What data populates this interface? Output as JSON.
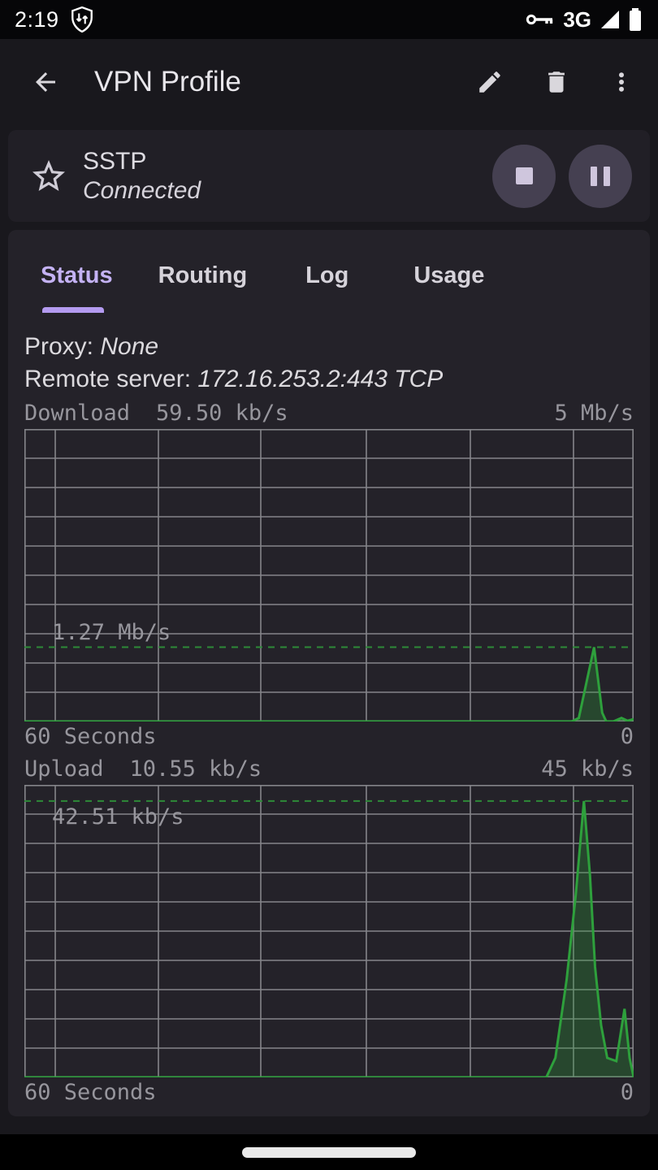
{
  "colors": {
    "accent_purple": "#b49bf0",
    "tab_active": "#c4b2f4",
    "grid_line": "#85858a",
    "chart_text": "#97969d",
    "green_stroke": "#2ea03c",
    "green_fill": "rgba(46,160,60,0.30)",
    "green_dashed": "#2d8a38",
    "button_circle": "#454051",
    "button_glyph": "#cfc6dd"
  },
  "status_bar": {
    "time": "2:19",
    "network_label": "3G"
  },
  "app_bar": {
    "title": "VPN Profile"
  },
  "profile_card": {
    "name": "SSTP",
    "status": "Connected"
  },
  "tabs": {
    "active_index": 0,
    "items": [
      {
        "label": "Status"
      },
      {
        "label": "Routing"
      },
      {
        "label": "Log"
      },
      {
        "label": "Usage"
      }
    ]
  },
  "connection_details": {
    "proxy_label": "Proxy:",
    "proxy_value": "None",
    "server_label": "Remote server:",
    "server_value": "172.16.253.2:443 TCP"
  },
  "chart_data": [
    {
      "type": "area",
      "title": "Download",
      "current_label": "59.50 kb/s",
      "ymax_label": "5 Mb/s",
      "peak_label": "1.27 Mb/s",
      "xlabel_left": "60 Seconds",
      "xlabel_right": "0",
      "x_span_seconds": 60,
      "y_unit": "kb/s",
      "ylim": [
        0,
        5000
      ],
      "dashed_value": 1270,
      "grid": {
        "rows": 10,
        "vlines": [
          0.0507,
          0.22,
          0.388,
          0.5613,
          0.732,
          0.9013
        ]
      },
      "series": [
        {
          "name": "download",
          "points": [
            [
              0,
              0
            ],
            [
              53.9,
              0
            ],
            [
              54.6,
              60
            ],
            [
              56.1,
              1270
            ],
            [
              56.9,
              150
            ],
            [
              57.3,
              0
            ],
            [
              58.0,
              0
            ],
            [
              58.8,
              59.5
            ],
            [
              59.4,
              12
            ],
            [
              60,
              40
            ]
          ]
        }
      ]
    },
    {
      "type": "area",
      "title": "Upload",
      "current_label": "10.55 kb/s",
      "ymax_label": "45 kb/s",
      "peak_label": "42.51 kb/s",
      "xlabel_left": "60 Seconds",
      "xlabel_right": "0",
      "x_span_seconds": 60,
      "y_unit": "kb/s",
      "ylim": [
        0,
        45
      ],
      "dashed_value": 42.51,
      "grid": {
        "rows": 10,
        "vlines": [
          0.0507,
          0.22,
          0.388,
          0.5613,
          0.732,
          0.9013
        ]
      },
      "series": [
        {
          "name": "upload",
          "points": [
            [
              0,
              0
            ],
            [
              51.4,
              0
            ],
            [
              52.3,
              3
            ],
            [
              53.4,
              15
            ],
            [
              54.3,
              28
            ],
            [
              55.1,
              42.51
            ],
            [
              55.7,
              31
            ],
            [
              56.2,
              17
            ],
            [
              56.8,
              8
            ],
            [
              57.4,
              3
            ],
            [
              58.3,
              2.5
            ],
            [
              59.1,
              10.55
            ],
            [
              59.6,
              3
            ],
            [
              60,
              0
            ]
          ]
        }
      ]
    }
  ]
}
